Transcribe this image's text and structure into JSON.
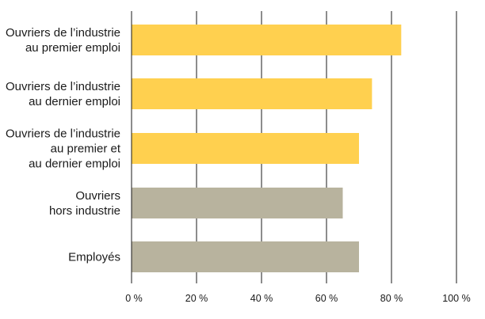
{
  "chart_data": {
    "type": "bar",
    "orientation": "horizontal",
    "categories": [
      [
        "Ouvriers de l’industrie",
        "au premier emploi"
      ],
      [
        "Ouvriers de l’industrie",
        "au dernier emploi"
      ],
      [
        "Ouvriers de l’industrie",
        "au premier et",
        "au dernier emploi"
      ],
      [
        "Ouvriers",
        "hors industrie"
      ],
      [
        "Employés"
      ]
    ],
    "values": [
      83,
      74,
      70,
      65,
      70
    ],
    "bar_colors": [
      "#ffd04f",
      "#ffd04f",
      "#ffd04f",
      "#b8b39e",
      "#b8b39e"
    ],
    "xlim": [
      0,
      100
    ],
    "xticks": [
      0,
      20,
      40,
      60,
      80,
      100
    ],
    "xtick_labels": [
      "0 %",
      "20 %",
      "40 %",
      "60 %",
      "80 %",
      "100 %"
    ],
    "grid": true,
    "grid_color": "#1a1a1a",
    "title": "",
    "xlabel": "",
    "ylabel": ""
  }
}
